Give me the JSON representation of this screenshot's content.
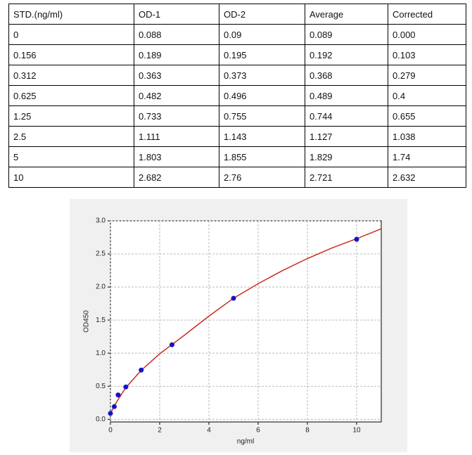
{
  "table": {
    "header": [
      "STD.(ng/ml)",
      "OD-1",
      "OD-2",
      "Average",
      "Corrected"
    ],
    "rows": [
      [
        "0",
        "0.088",
        "0.09",
        "0.089",
        "0.000"
      ],
      [
        "0.156",
        "0.189",
        "0.195",
        "0.192",
        "0.103"
      ],
      [
        "0.312",
        "0.363",
        "0.373",
        "0.368",
        "0.279"
      ],
      [
        "0.625",
        "0.482",
        "0.496",
        "0.489",
        "0.4"
      ],
      [
        "1.25",
        "0.733",
        "0.755",
        "0.744",
        "0.655"
      ],
      [
        "2.5",
        "1.111",
        "1.143",
        "1.127",
        "1.038"
      ],
      [
        "5",
        "1.803",
        "1.855",
        "1.829",
        "1.74"
      ],
      [
        "10",
        "2.682",
        "2.76",
        "2.721",
        "2.632"
      ]
    ]
  },
  "chart_data": {
    "type": "scatter",
    "xlabel": "ng/ml",
    "ylabel": "OD450",
    "xlim": [
      0,
      11
    ],
    "ylim": [
      -0.04,
      3.0
    ],
    "xticks": [
      0,
      2,
      4,
      6,
      8,
      10
    ],
    "yticks": [
      {
        "value": 0,
        "label": "0.0"
      },
      0.5,
      {
        "value": 1,
        "label": "1.0"
      },
      1.5,
      {
        "value": 2,
        "label": "2.0"
      },
      2.5,
      {
        "value": 3,
        "label": "3.0"
      }
    ],
    "grid": true,
    "series": [
      {
        "type": "line",
        "color": "#cc2a1e",
        "x": [
          0,
          0.156,
          0.312,
          0.625,
          1.25,
          2,
          2.5,
          3,
          4,
          5,
          6,
          7,
          8,
          9,
          10,
          11
        ],
        "values": [
          0.09,
          0.2,
          0.3,
          0.48,
          0.74,
          0.99,
          1.13,
          1.27,
          1.56,
          1.83,
          2.05,
          2.25,
          2.43,
          2.59,
          2.73,
          2.88
        ]
      },
      {
        "type": "scatter",
        "color": "#1414c8",
        "x": [
          0,
          0.156,
          0.312,
          0.625,
          1.25,
          2.5,
          5,
          10
        ],
        "values": [
          0.089,
          0.192,
          0.368,
          0.489,
          0.744,
          1.127,
          1.829,
          2.721
        ]
      }
    ]
  }
}
